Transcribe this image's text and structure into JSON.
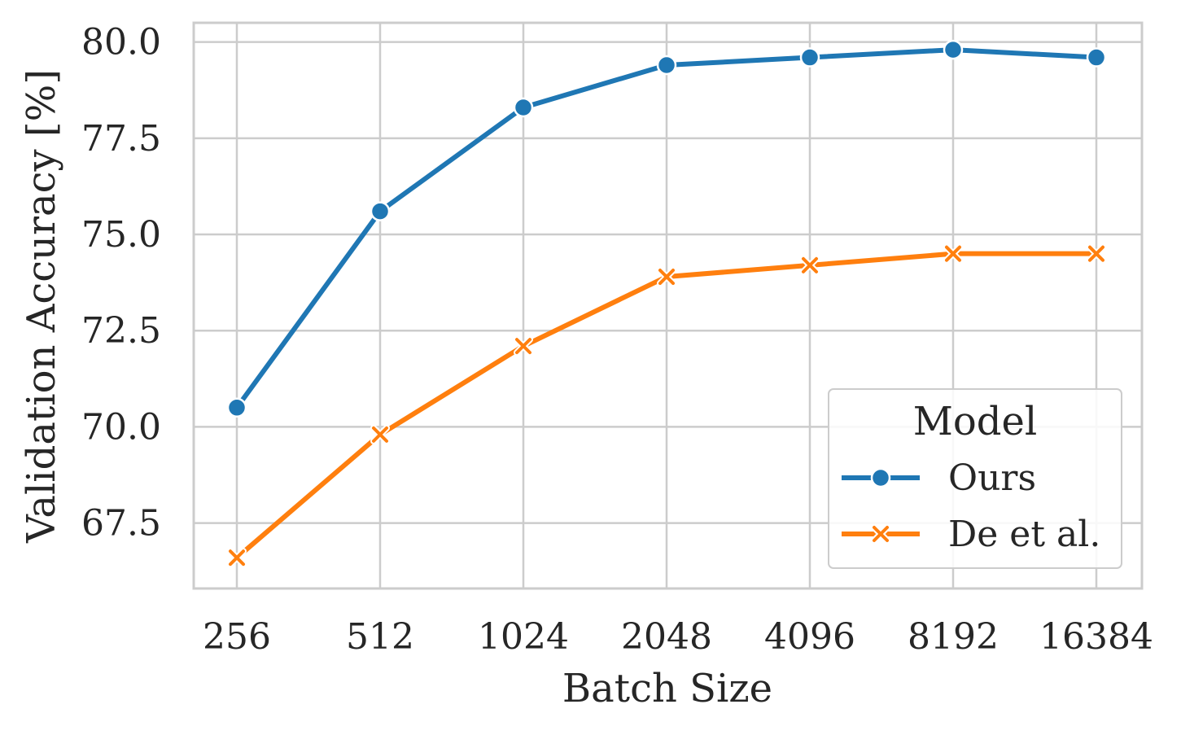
{
  "chart_data": {
    "type": "line",
    "title": "",
    "xlabel": "Batch Size",
    "ylabel": "Validation Accuracy [%]",
    "categories": [
      "256",
      "512",
      "1024",
      "2048",
      "4096",
      "8192",
      "16384"
    ],
    "yticks": [
      "67.5",
      "70.0",
      "72.5",
      "75.0",
      "77.5",
      "80.0"
    ],
    "ylim": [
      65.8,
      80.5
    ],
    "grid": true,
    "legend": {
      "title": "Model",
      "placement": "bottom-right"
    },
    "series": [
      {
        "name": "Ours",
        "marker": "circle",
        "color": "#1f77b4",
        "values": [
          70.5,
          75.6,
          78.3,
          79.4,
          79.6,
          79.8,
          79.6
        ]
      },
      {
        "name": "De et al.",
        "marker": "x",
        "color": "#ff7f0e",
        "values": [
          66.6,
          69.8,
          72.1,
          73.9,
          74.2,
          74.5,
          74.5
        ]
      }
    ]
  }
}
